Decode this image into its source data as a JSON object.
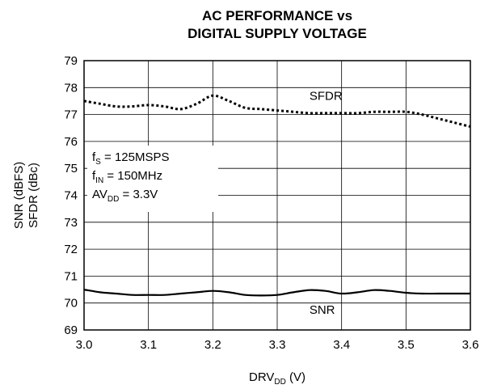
{
  "chart_data": {
    "type": "line",
    "title_line1": "AC PERFORMANCE vs",
    "title_line2": "DIGITAL SUPPLY VOLTAGE",
    "xlabel": {
      "main": "DRV",
      "sub": "DD",
      "suffix": " (V)"
    },
    "ylabel_line1": "SNR (dBFS)",
    "ylabel_line2": "SFDR (dBc)",
    "xlim": [
      3.0,
      3.6
    ],
    "ylim": [
      69,
      79
    ],
    "x_ticks": [
      "3.0",
      "3.1",
      "3.2",
      "3.3",
      "3.4",
      "3.5",
      "3.6"
    ],
    "y_ticks": [
      "69",
      "70",
      "71",
      "72",
      "73",
      "74",
      "75",
      "76",
      "77",
      "78",
      "79"
    ],
    "grid": true,
    "conditions": {
      "fs": {
        "main": "f",
        "sub": "S",
        "rest": " = 125MSPS"
      },
      "fin": {
        "main": "f",
        "sub": "IN",
        "rest": " = 150MHz"
      },
      "avdd": {
        "main": "AV",
        "sub": "DD",
        "rest": " = 3.3V"
      }
    },
    "series": [
      {
        "name": "SFDR",
        "style": "dotted",
        "x": [
          3.0,
          3.025,
          3.05,
          3.075,
          3.1,
          3.125,
          3.15,
          3.175,
          3.2,
          3.225,
          3.25,
          3.275,
          3.3,
          3.325,
          3.35,
          3.375,
          3.4,
          3.425,
          3.45,
          3.475,
          3.5,
          3.525,
          3.55,
          3.575,
          3.6
        ],
        "y": [
          77.5,
          77.4,
          77.3,
          77.3,
          77.35,
          77.3,
          77.2,
          77.4,
          77.7,
          77.5,
          77.25,
          77.2,
          77.15,
          77.1,
          77.05,
          77.05,
          77.05,
          77.05,
          77.1,
          77.1,
          77.1,
          77.0,
          76.85,
          76.7,
          76.55
        ]
      },
      {
        "name": "SNR",
        "style": "solid",
        "x": [
          3.0,
          3.025,
          3.05,
          3.075,
          3.1,
          3.125,
          3.15,
          3.175,
          3.2,
          3.225,
          3.25,
          3.275,
          3.3,
          3.325,
          3.35,
          3.375,
          3.4,
          3.425,
          3.45,
          3.475,
          3.5,
          3.525,
          3.55,
          3.575,
          3.6
        ],
        "y": [
          70.5,
          70.4,
          70.35,
          70.3,
          70.3,
          70.3,
          70.35,
          70.4,
          70.45,
          70.4,
          70.3,
          70.28,
          70.3,
          70.4,
          70.48,
          70.45,
          70.35,
          70.4,
          70.48,
          70.45,
          70.38,
          70.35,
          70.35,
          70.35,
          70.35
        ]
      }
    ],
    "series_labels": [
      {
        "text": "SFDR",
        "x": 3.35,
        "y": 77.55
      },
      {
        "text": "SNR",
        "x": 3.35,
        "y": 69.6
      }
    ]
  }
}
